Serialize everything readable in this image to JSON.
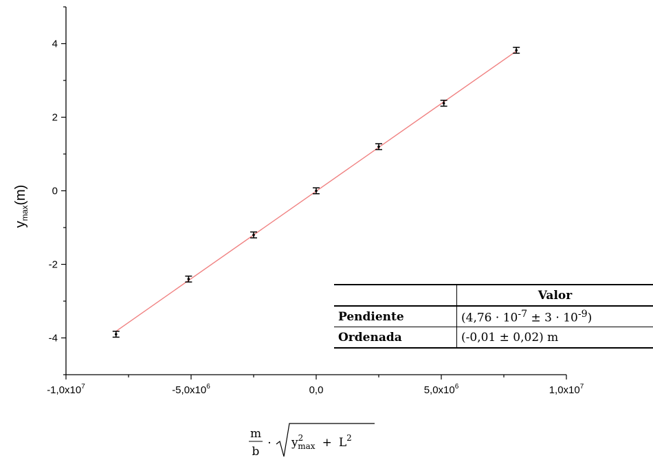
{
  "chart_data": {
    "type": "scatter",
    "x_tick_labels": [
      {
        "value": -10000000,
        "label": "-1,0x10",
        "exp": "7"
      },
      {
        "value": -5000000,
        "label": "-5,0x10",
        "exp": "6"
      },
      {
        "value": 0,
        "label": "0,0",
        "exp": ""
      },
      {
        "value": 5000000,
        "label": "5,0x10",
        "exp": "6"
      },
      {
        "value": 10000000,
        "label": "1,0x10",
        "exp": "7"
      }
    ],
    "y_tick_labels": [
      {
        "value": -4,
        "label": "-4"
      },
      {
        "value": -2,
        "label": "-2"
      },
      {
        "value": 0,
        "label": "0"
      },
      {
        "value": 2,
        "label": "2"
      },
      {
        "value": 4,
        "label": "4"
      }
    ],
    "xlim": [
      -10000000,
      10000000
    ],
    "ylim": [
      -5,
      5
    ],
    "ylabel": {
      "main": "y",
      "sub": "max",
      "tail": "(m)"
    },
    "xlabel": {
      "num": "m",
      "den": "b",
      "dot": "·",
      "y": "y",
      "sup": "2",
      "sub": "max",
      "plus": "+",
      "L": "L",
      "Lsup": "2"
    },
    "points": [
      {
        "x": -8000000,
        "y": -3.9,
        "err": 0.08
      },
      {
        "x": -5100000,
        "y": -2.4,
        "err": 0.08
      },
      {
        "x": -2500000,
        "y": -1.2,
        "err": 0.08
      },
      {
        "x": 0,
        "y": 0.0,
        "err": 0.08
      },
      {
        "x": 2500000,
        "y": 1.2,
        "err": 0.08
      },
      {
        "x": 5100000,
        "y": 2.38,
        "err": 0.08
      },
      {
        "x": 8000000,
        "y": 3.82,
        "err": 0.08
      }
    ],
    "fit_line": {
      "slope": 4.76e-07,
      "intercept": -0.01,
      "x_range": [
        -8000000,
        8000000
      ]
    },
    "colors": {
      "fit": "#f08080",
      "points": "#000000"
    },
    "grid": false
  },
  "table": {
    "header": [
      "",
      "Valor"
    ],
    "rows": [
      {
        "label": "Pendiente",
        "value": "(4,76 · 10",
        "exp1": "-7",
        "mid": " ± 3 · 10",
        "exp2": "-9",
        "tail": ")"
      },
      {
        "label": "Ordenada",
        "value": "(-0,01 ± 0,02) m",
        "exp1": "",
        "mid": "",
        "exp2": "",
        "tail": ""
      }
    ]
  }
}
